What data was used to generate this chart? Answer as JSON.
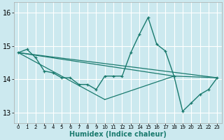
{
  "background_color": "#cce9ef",
  "grid_color": "#aed4da",
  "line_color": "#1a7a6e",
  "ylim": [
    12.7,
    16.3
  ],
  "xlim": [
    -0.5,
    23.5
  ],
  "yticks": [
    13,
    14,
    15,
    16
  ],
  "xlabel": "Humidex (Indice chaleur)",
  "main_series_x": [
    0,
    1,
    2,
    3,
    4,
    5,
    6,
    7,
    8,
    9,
    10,
    11,
    12,
    13,
    14,
    15,
    16,
    17,
    18,
    19,
    20,
    21,
    22,
    23
  ],
  "main_series_y": [
    14.8,
    14.9,
    14.65,
    14.25,
    14.2,
    14.05,
    14.05,
    13.85,
    13.85,
    13.7,
    14.1,
    14.1,
    14.1,
    14.8,
    15.35,
    15.85,
    15.05,
    14.85,
    14.1,
    13.05,
    13.3,
    13.55,
    13.7,
    14.05
  ],
  "extra_lines": [
    {
      "x": [
        0,
        18
      ],
      "y": [
        14.8,
        14.1
      ]
    },
    {
      "x": [
        0,
        23
      ],
      "y": [
        14.8,
        14.05
      ]
    },
    {
      "x": [
        0,
        10
      ],
      "y": [
        14.8,
        13.4
      ]
    },
    {
      "x": [
        10,
        18
      ],
      "y": [
        13.4,
        14.1
      ]
    },
    {
      "x": [
        18,
        23
      ],
      "y": [
        14.1,
        14.05
      ]
    }
  ],
  "xlabel_fontsize": 7,
  "ytick_fontsize": 7,
  "xtick_fontsize": 5
}
